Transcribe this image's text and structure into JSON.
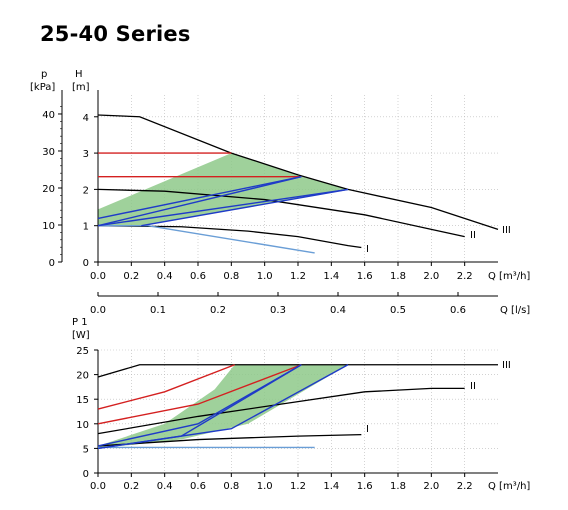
{
  "title": "25-40 Series",
  "colors": {
    "black": "#000000",
    "red": "#d42020",
    "blue": "#1f3bc8",
    "light_blue": "#6a9ed6",
    "green_fill": "#8ec98a",
    "grid": "#b8b8b8"
  },
  "chart_data": [
    {
      "id": "head",
      "type": "line",
      "ylabel_left": [
        "p",
        "[kPa]"
      ],
      "ylabel_right": [
        "H",
        "[m]"
      ],
      "xlabel": "Q [m³/h]",
      "xlim": [
        0,
        2.4
      ],
      "ylim": [
        0,
        4.6
      ],
      "x_ticks": [
        "0.0",
        "0.2",
        "0.4",
        "0.6",
        "0.8",
        "1.0",
        "1.2",
        "1.4",
        "1.6",
        "1.8",
        "2.0",
        "2.2"
      ],
      "y_ticks_m": [
        "0",
        "1",
        "2",
        "3",
        "4"
      ],
      "y_ticks_kpa": [
        "0",
        "10",
        "20",
        "30",
        "40"
      ],
      "second_x_axis": {
        "label": "Q [l/s]",
        "ticks": [
          "0.0",
          "0.1",
          "0.2",
          "0.3",
          "0.4",
          "0.5",
          "0.6"
        ]
      },
      "grid": true,
      "curve_labels": [
        "I",
        "II",
        "III"
      ],
      "series": [
        {
          "color_key": "black",
          "points": [
            [
              0,
              4.05
            ],
            [
              0.25,
              4.0
            ],
            [
              0.8,
              3.0
            ],
            [
              1.2,
              2.4
            ],
            [
              1.5,
              2.0
            ],
            [
              2.0,
              1.5
            ],
            [
              2.4,
              0.9
            ]
          ]
        },
        {
          "color_key": "black",
          "points": [
            [
              0,
              2.0
            ],
            [
              0.4,
              1.95
            ],
            [
              1.0,
              1.72
            ],
            [
              1.6,
              1.3
            ],
            [
              2.0,
              0.9
            ],
            [
              2.2,
              0.7
            ]
          ]
        },
        {
          "color_key": "black",
          "points": [
            [
              0,
              1.0
            ],
            [
              0.5,
              0.97
            ],
            [
              0.9,
              0.85
            ],
            [
              1.2,
              0.7
            ],
            [
              1.5,
              0.45
            ],
            [
              1.58,
              0.4
            ]
          ]
        },
        {
          "color_key": "light_blue",
          "points": [
            [
              0,
              1.0
            ],
            [
              0.3,
              1.0
            ],
            [
              1.3,
              0.25
            ]
          ]
        },
        {
          "color_key": "red",
          "points": [
            [
              0,
              3.0
            ],
            [
              0.8,
              3.0
            ]
          ]
        },
        {
          "color_key": "red",
          "points": [
            [
              0,
              2.35
            ],
            [
              1.22,
              2.35
            ]
          ]
        },
        {
          "color_key": "blue",
          "points": [
            [
              0,
              1.2
            ],
            [
              1.22,
              2.35
            ]
          ]
        },
        {
          "color_key": "blue",
          "points": [
            [
              0,
              1.0
            ],
            [
              1.5,
              2.0
            ]
          ]
        },
        {
          "color_key": "blue",
          "points": [
            [
              0,
              1.0
            ],
            [
              1.22,
              2.35
            ]
          ]
        },
        {
          "color_key": "blue",
          "points": [
            [
              1.5,
              2.0
            ],
            [
              0.26,
              1.0
            ]
          ]
        }
      ]
    },
    {
      "id": "power",
      "type": "line",
      "ylabel_left": [
        "P 1",
        "[W]"
      ],
      "xlabel": "Q [m³/h]",
      "xlim": [
        0,
        2.4
      ],
      "ylim": [
        0,
        25
      ],
      "x_ticks": [
        "0.0",
        "0.2",
        "0.4",
        "0.6",
        "0.8",
        "1.0",
        "1.2",
        "1.4",
        "1.6",
        "1.8",
        "2.0",
        "2.2"
      ],
      "y_ticks": [
        "0",
        "5",
        "10",
        "15",
        "20",
        "25"
      ],
      "grid": true,
      "curve_labels": [
        "I",
        "II",
        "III"
      ],
      "series": [
        {
          "color_key": "black",
          "points": [
            [
              0,
              19.5
            ],
            [
              0.25,
              22
            ],
            [
              2.4,
              22
            ]
          ]
        },
        {
          "color_key": "black",
          "points": [
            [
              0,
              8
            ],
            [
              0.6,
              11.5
            ],
            [
              1.2,
              14.5
            ],
            [
              1.6,
              16.5
            ],
            [
              2.0,
              17.2
            ],
            [
              2.2,
              17.2
            ]
          ]
        },
        {
          "color_key": "black",
          "points": [
            [
              0,
              5.5
            ],
            [
              0.6,
              6.8
            ],
            [
              1.2,
              7.5
            ],
            [
              1.58,
              7.8
            ]
          ]
        },
        {
          "color_key": "light_blue",
          "points": [
            [
              0,
              5.2
            ],
            [
              1.3,
              5.2
            ]
          ]
        },
        {
          "color_key": "red",
          "points": [
            [
              0,
              13
            ],
            [
              0.4,
              16.5
            ],
            [
              0.82,
              22
            ]
          ]
        },
        {
          "color_key": "red",
          "points": [
            [
              0,
              10
            ],
            [
              0.6,
              14
            ],
            [
              1.22,
              22
            ]
          ]
        },
        {
          "color_key": "blue",
          "points": [
            [
              0,
              5.5
            ],
            [
              0.6,
              10
            ],
            [
              1.22,
              22
            ]
          ]
        },
        {
          "color_key": "blue",
          "points": [
            [
              0,
              5
            ],
            [
              0.8,
              9
            ],
            [
              1.5,
              22
            ]
          ]
        },
        {
          "color_key": "blue",
          "points": [
            [
              0,
              5
            ],
            [
              0.5,
              7.5
            ],
            [
              1.22,
              22
            ]
          ]
        }
      ]
    }
  ]
}
